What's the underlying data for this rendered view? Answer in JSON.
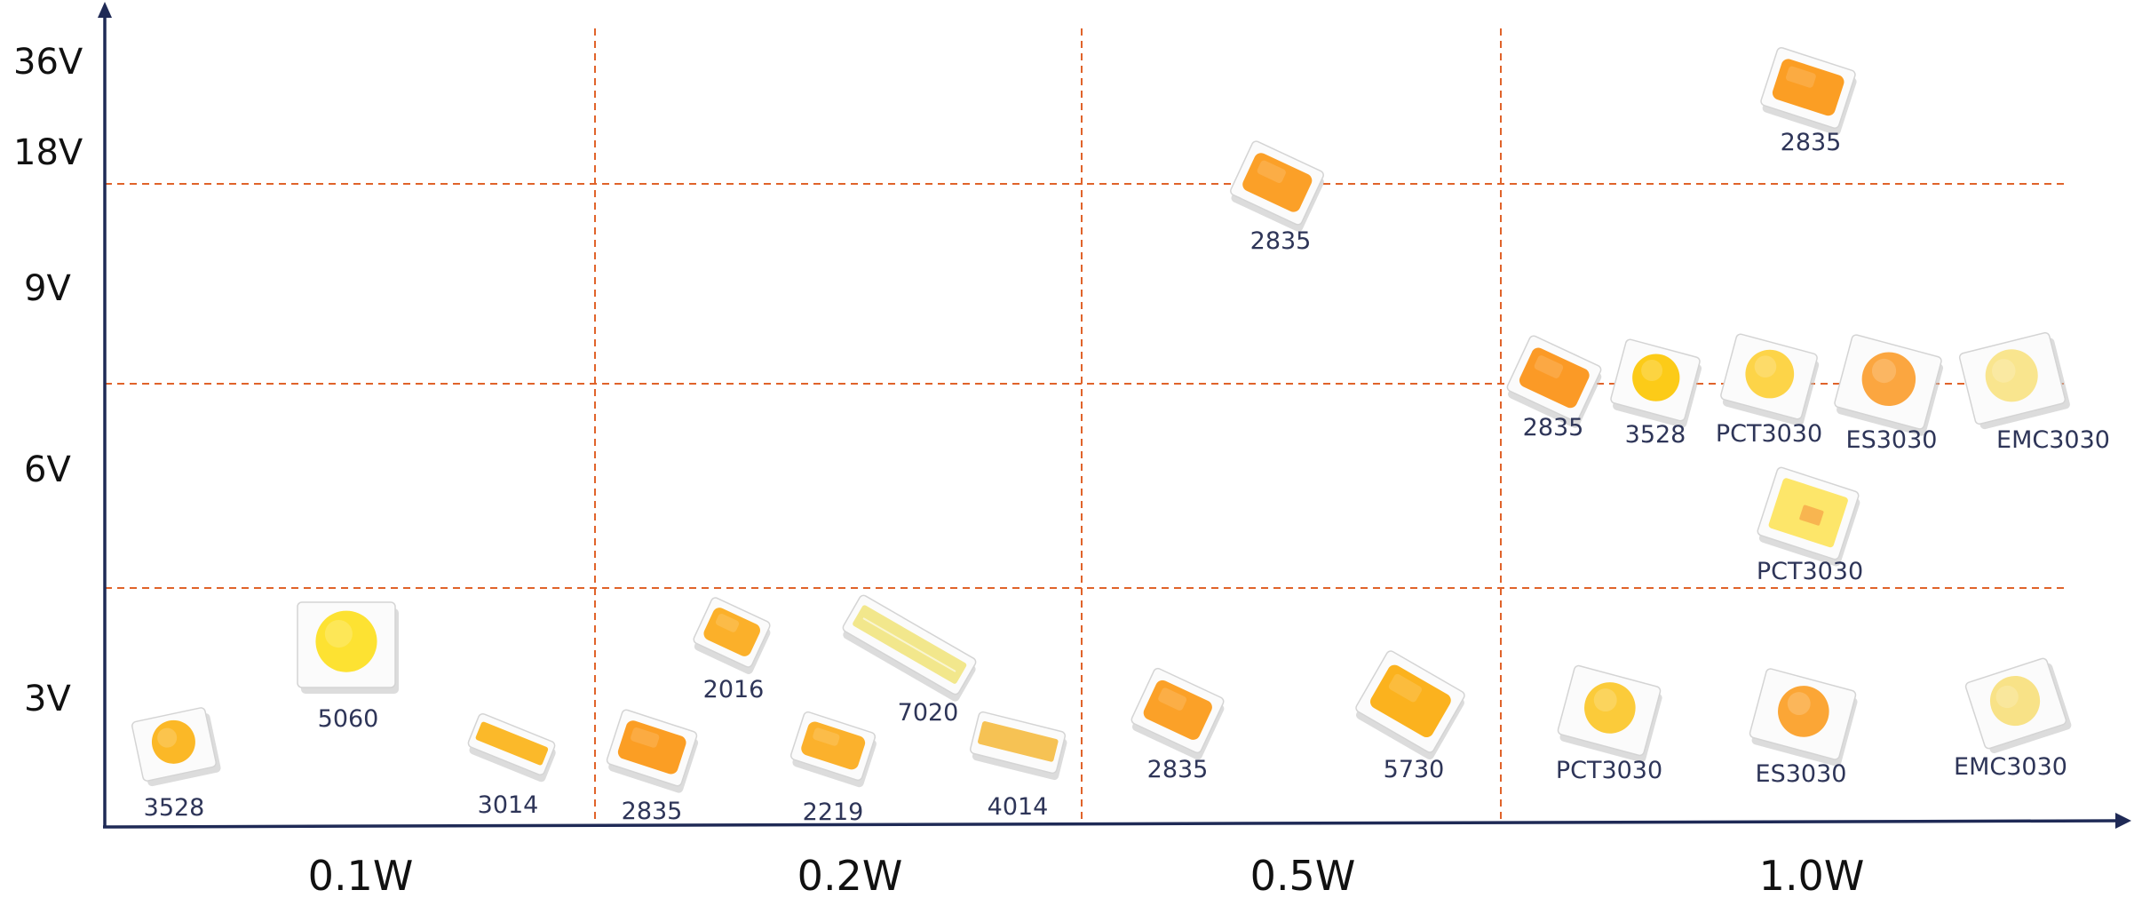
{
  "y_axis": {
    "tick_labels": [
      "36V",
      "18V",
      "9V",
      "6V",
      "3V"
    ]
  },
  "x_axis": {
    "tick_labels": [
      "0.1W",
      "0.2W",
      "0.5W",
      "1.0W"
    ]
  },
  "packages": [
    {
      "label": "3528",
      "power": "0.1W",
      "voltage": "3V",
      "style": "round",
      "color": "#fbb827"
    },
    {
      "label": "5060",
      "power": "0.1W",
      "voltage": "3V",
      "style": "round",
      "color": "#fde232"
    },
    {
      "label": "3014",
      "power": "0.1W",
      "voltage": "3V",
      "style": "bar",
      "color": "#fbb92a"
    },
    {
      "label": "2835",
      "power": "0.2W",
      "voltage": "3V",
      "style": "rect",
      "color": "#fb9e24"
    },
    {
      "label": "2016",
      "power": "0.2W",
      "voltage": "3V",
      "style": "rect",
      "color": "#fbb02a"
    },
    {
      "label": "2219",
      "power": "0.2W",
      "voltage": "3V",
      "style": "rect",
      "color": "#fbb12c"
    },
    {
      "label": "7020",
      "power": "0.2W",
      "voltage": "3V",
      "style": "long",
      "color": "#f2e78c"
    },
    {
      "label": "4014",
      "power": "0.2W",
      "voltage": "3V",
      "style": "bar",
      "color": "#f6c254"
    },
    {
      "label": "2835",
      "power": "0.5W",
      "voltage": "3V",
      "style": "rect",
      "color": "#fba128"
    },
    {
      "label": "5730",
      "power": "0.5W",
      "voltage": "3V",
      "style": "rect",
      "color": "#fbb21e"
    },
    {
      "label": "2835",
      "power": "0.5W",
      "voltage": "18V",
      "style": "rect",
      "color": "#fba028"
    },
    {
      "label": "PCT3030",
      "power": "1.0W",
      "voltage": "3V",
      "style": "round",
      "color": "#fbcb3a"
    },
    {
      "label": "ES3030",
      "power": "1.0W",
      "voltage": "3V",
      "style": "round",
      "color": "#fba636"
    },
    {
      "label": "EMC3030",
      "power": "1.0W",
      "voltage": "3V",
      "style": "round",
      "color": "#f8e287"
    },
    {
      "label": "PCT3030",
      "power": "1.0W",
      "voltage": "6V",
      "style": "square",
      "color": "#fde66a"
    },
    {
      "label": "2835",
      "power": "1.0W",
      "voltage": "9V",
      "style": "rect",
      "color": "#fb9a26"
    },
    {
      "label": "3528",
      "power": "1.0W",
      "voltage": "9V",
      "style": "round",
      "color": "#fccb18"
    },
    {
      "label": "PCT3030",
      "power": "1.0W",
      "voltage": "9V",
      "style": "round",
      "color": "#fdd448"
    },
    {
      "label": "ES3030",
      "power": "1.0W",
      "voltage": "9V",
      "style": "round",
      "color": "#fba640"
    },
    {
      "label": "EMC3030",
      "power": "1.0W",
      "voltage": "9V",
      "style": "round",
      "color": "#f9e58e"
    },
    {
      "label": "2835",
      "power": "1.0W",
      "voltage": "36V",
      "style": "rect",
      "color": "#fb9e24"
    }
  ],
  "colors": {
    "axis": "#1f2a56",
    "grid": "#e0632a",
    "label": "#2e3558"
  }
}
